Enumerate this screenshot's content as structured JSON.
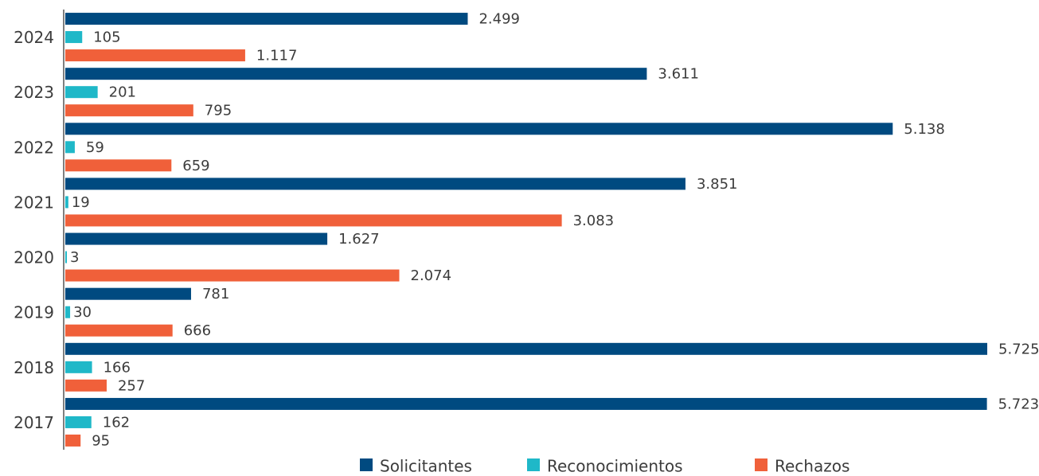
{
  "chart_data": {
    "type": "bar",
    "orientation": "horizontal",
    "categories": [
      "2024",
      "2023",
      "2022",
      "2021",
      "2020",
      "2019",
      "2018",
      "2017"
    ],
    "series": [
      {
        "name": "Solicitantes",
        "color": "#004a80",
        "values": [
          2499,
          3611,
          5138,
          3851,
          1627,
          781,
          5725,
          5723
        ],
        "value_labels": [
          "2.499",
          "3.611",
          "5.138",
          "3.851",
          "1.627",
          "781",
          "5.725",
          "5.723"
        ]
      },
      {
        "name": "Reconocimientos",
        "color": "#1fb8c8",
        "values": [
          105,
          201,
          59,
          19,
          3,
          30,
          166,
          162
        ],
        "value_labels": [
          "105",
          "201",
          "59",
          "19",
          "3",
          "30",
          "166",
          "162"
        ]
      },
      {
        "name": "Rechazos",
        "color": "#f0603a",
        "values": [
          1117,
          795,
          659,
          3083,
          2074,
          666,
          257,
          95
        ],
        "value_labels": [
          "1.117",
          "795",
          "659",
          "3.083",
          "2.074",
          "666",
          "257",
          "95"
        ]
      }
    ],
    "legend": "bottom"
  }
}
